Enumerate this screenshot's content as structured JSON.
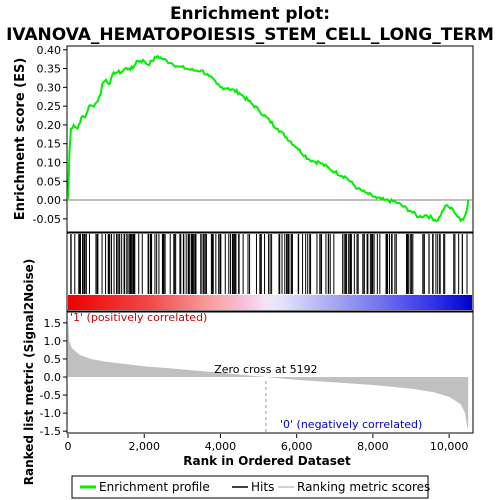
{
  "chart_data": {
    "type": "line",
    "title_line1": "Enrichment plot:",
    "title_line2": "IVANOVA_HEMATOPOIESIS_STEM_CELL_LONG_TERM",
    "top_panel": {
      "ylabel": "Enrichment score (ES)",
      "ylim": [
        -0.085,
        0.41
      ],
      "yticks": [
        "0.40",
        "0.35",
        "0.30",
        "0.25",
        "0.20",
        "0.15",
        "0.10",
        "0.05",
        "0.00",
        "-0.05"
      ],
      "ytick_values": [
        0.4,
        0.35,
        0.3,
        0.25,
        0.2,
        0.15,
        0.1,
        0.05,
        0.0,
        -0.05
      ],
      "series_color": "#00ee00",
      "es_curve": [
        [
          0,
          0.0
        ],
        [
          40,
          0.13
        ],
        [
          80,
          0.19
        ],
        [
          150,
          0.2
        ],
        [
          250,
          0.19
        ],
        [
          350,
          0.22
        ],
        [
          450,
          0.22
        ],
        [
          550,
          0.25
        ],
        [
          650,
          0.25
        ],
        [
          750,
          0.26
        ],
        [
          850,
          0.28
        ],
        [
          900,
          0.31
        ],
        [
          1000,
          0.32
        ],
        [
          1100,
          0.31
        ],
        [
          1200,
          0.34
        ],
        [
          1300,
          0.34
        ],
        [
          1400,
          0.34
        ],
        [
          1500,
          0.35
        ],
        [
          1600,
          0.35
        ],
        [
          1700,
          0.35
        ],
        [
          1800,
          0.37
        ],
        [
          1900,
          0.37
        ],
        [
          2000,
          0.37
        ],
        [
          2100,
          0.36
        ],
        [
          2200,
          0.37
        ],
        [
          2350,
          0.383
        ],
        [
          2500,
          0.375
        ],
        [
          2700,
          0.365
        ],
        [
          2900,
          0.355
        ],
        [
          3100,
          0.35
        ],
        [
          3300,
          0.345
        ],
        [
          3500,
          0.345
        ],
        [
          3700,
          0.33
        ],
        [
          3900,
          0.31
        ],
        [
          4000,
          0.3
        ],
        [
          4200,
          0.298
        ],
        [
          4500,
          0.285
        ],
        [
          5000,
          0.24
        ],
        [
          5500,
          0.19
        ],
        [
          6000,
          0.14
        ],
        [
          6300,
          0.11
        ],
        [
          6450,
          0.103
        ],
        [
          6600,
          0.1
        ],
        [
          7000,
          0.075
        ],
        [
          7300,
          0.06
        ],
        [
          7600,
          0.03
        ],
        [
          7800,
          0.02
        ],
        [
          8100,
          0.005
        ],
        [
          8300,
          0.0
        ],
        [
          8600,
          -0.005
        ],
        [
          9000,
          -0.03
        ],
        [
          9200,
          -0.045
        ],
        [
          9400,
          -0.04
        ],
        [
          9700,
          -0.055
        ],
        [
          9900,
          -0.015
        ],
        [
          10100,
          -0.025
        ],
        [
          10300,
          -0.055
        ],
        [
          10400,
          -0.045
        ],
        [
          10480,
          -0.02
        ],
        [
          10500,
          0.0
        ]
      ]
    },
    "middle_panel": {
      "hits_label": "Hits",
      "num_hits": 210
    },
    "bottom_panel": {
      "ylabel": "Ranked list metric (Signal2Noise)",
      "xlabel": "Rank in Ordered Dataset",
      "ylim": [
        -1.55,
        1.8
      ],
      "yticks": [
        "1.5",
        "1.0",
        "0.5",
        "0.0",
        "-0.5",
        "-1.0",
        "-1.5"
      ],
      "ytick_values": [
        1.5,
        1.0,
        0.5,
        0.0,
        -0.5,
        -1.0,
        -1.5
      ],
      "xticks": [
        "0",
        "2,000",
        "4,000",
        "6,000",
        "8,000",
        "10,000"
      ],
      "xtick_values": [
        0,
        2000,
        4000,
        6000,
        8000,
        10000
      ],
      "xlim": [
        0,
        10600
      ],
      "zero_cross_label": "Zero cross at 5192",
      "zero_cross": 5192,
      "pos_label": "'1' (positively correlated)",
      "neg_label": "'0' (negatively correlated)",
      "pos_label_color": "#cc0000",
      "neg_label_color": "#0000cc",
      "fill_color": "#c0c0c0",
      "metric_curve": [
        [
          0,
          1.7
        ],
        [
          30,
          1.0
        ],
        [
          100,
          0.8
        ],
        [
          300,
          0.62
        ],
        [
          600,
          0.5
        ],
        [
          1000,
          0.42
        ],
        [
          1500,
          0.36
        ],
        [
          2000,
          0.3
        ],
        [
          3000,
          0.21
        ],
        [
          4000,
          0.12
        ],
        [
          5192,
          0.0
        ],
        [
          6000,
          -0.08
        ],
        [
          7000,
          -0.15
        ],
        [
          8000,
          -0.22
        ],
        [
          9000,
          -0.32
        ],
        [
          9600,
          -0.42
        ],
        [
          10000,
          -0.55
        ],
        [
          10300,
          -0.75
        ],
        [
          10420,
          -1.0
        ],
        [
          10480,
          -1.4
        ],
        [
          10500,
          -1.4
        ]
      ]
    },
    "n_genes": 10500,
    "legend": [
      "Enrichment profile",
      "Hits",
      "Ranking metric scores"
    ]
  }
}
